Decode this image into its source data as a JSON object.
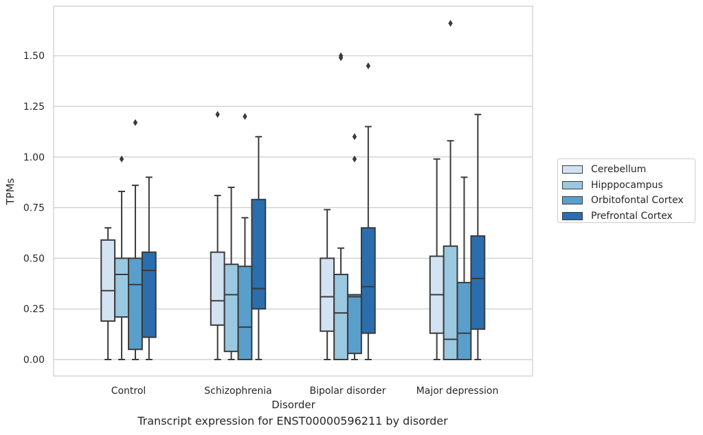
{
  "chart_data": {
    "type": "box",
    "caption": "Transcript expression for ENST00000596211 by disorder",
    "xlabel": "Disorder",
    "ylabel": "TPMs",
    "ylim": [
      -0.08,
      1.75
    ],
    "yticks": [
      "0.00",
      "0.25",
      "0.50",
      "0.75",
      "1.00",
      "1.25",
      "1.50"
    ],
    "categories": [
      "Control",
      "Schizophrenia",
      "Bipolar disorder",
      "Major depression"
    ],
    "grid": "horizontal",
    "legend_position": "right",
    "series": [
      {
        "name": "Cerebellum",
        "color": "#d3e3f3",
        "boxes": [
          {
            "min": 0.0,
            "q1": 0.19,
            "median": 0.34,
            "q3": 0.59,
            "max": 0.65,
            "outliers": []
          },
          {
            "min": 0.0,
            "q1": 0.17,
            "median": 0.29,
            "q3": 0.53,
            "max": 0.81,
            "outliers": [
              1.21
            ]
          },
          {
            "min": 0.0,
            "q1": 0.14,
            "median": 0.31,
            "q3": 0.5,
            "max": 0.74,
            "outliers": []
          },
          {
            "min": 0.0,
            "q1": 0.13,
            "median": 0.32,
            "q3": 0.51,
            "max": 0.99,
            "outliers": []
          }
        ]
      },
      {
        "name": "Hipppocampus",
        "color": "#9ac8e0",
        "boxes": [
          {
            "min": 0.0,
            "q1": 0.21,
            "median": 0.42,
            "q3": 0.5,
            "max": 0.83,
            "outliers": [
              0.99
            ]
          },
          {
            "min": 0.0,
            "q1": 0.04,
            "median": 0.32,
            "q3": 0.47,
            "max": 0.85,
            "outliers": []
          },
          {
            "min": 0.0,
            "q1": 0.0,
            "median": 0.23,
            "q3": 0.42,
            "max": 0.55,
            "outliers": [
              1.49,
              1.5
            ]
          },
          {
            "min": 0.0,
            "q1": 0.0,
            "median": 0.1,
            "q3": 0.56,
            "max": 1.08,
            "outliers": [
              1.66
            ]
          }
        ]
      },
      {
        "name": "Orbitofontal Cortex",
        "color": "#5a9fcb",
        "boxes": [
          {
            "min": 0.0,
            "q1": 0.05,
            "median": 0.37,
            "q3": 0.5,
            "max": 0.86,
            "outliers": [
              1.17
            ]
          },
          {
            "min": 0.0,
            "q1": 0.0,
            "median": 0.16,
            "q3": 0.46,
            "max": 0.7,
            "outliers": [
              1.2
            ]
          },
          {
            "min": 0.0,
            "q1": 0.03,
            "median": 0.31,
            "q3": 0.32,
            "max": 0.32,
            "outliers": [
              0.99,
              1.1
            ]
          },
          {
            "min": 0.0,
            "q1": 0.0,
            "median": 0.13,
            "q3": 0.38,
            "max": 0.9,
            "outliers": []
          }
        ]
      },
      {
        "name": "Prefrontal Cortex",
        "color": "#2b6ead",
        "boxes": [
          {
            "min": 0.0,
            "q1": 0.11,
            "median": 0.44,
            "q3": 0.53,
            "max": 0.9,
            "outliers": []
          },
          {
            "min": 0.0,
            "q1": 0.25,
            "median": 0.35,
            "q3": 0.79,
            "max": 1.1,
            "outliers": []
          },
          {
            "min": 0.0,
            "q1": 0.13,
            "median": 0.36,
            "q3": 0.65,
            "max": 1.15,
            "outliers": [
              1.45
            ]
          },
          {
            "min": 0.0,
            "q1": 0.15,
            "median": 0.4,
            "q3": 0.61,
            "max": 1.21,
            "outliers": []
          }
        ]
      }
    ]
  }
}
